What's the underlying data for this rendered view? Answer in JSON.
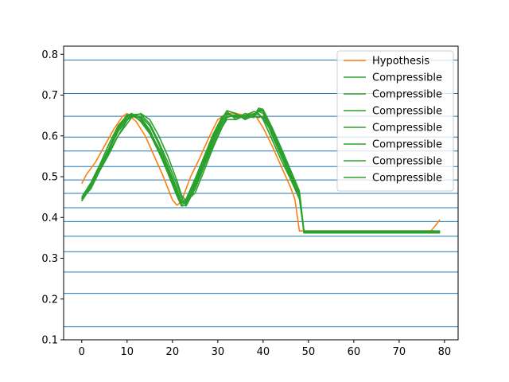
{
  "chart_data": {
    "type": "line",
    "xlim": [
      -4,
      83
    ],
    "ylim": [
      0.1,
      0.82
    ],
    "xticks": [
      0,
      10,
      20,
      30,
      40,
      50,
      60,
      70,
      80
    ],
    "yticks": [
      0.1,
      0.2,
      0.3,
      0.4,
      0.5,
      0.6,
      0.7,
      0.8
    ],
    "xtick_labels": [
      "0",
      "10",
      "20",
      "30",
      "40",
      "50",
      "60",
      "70",
      "80"
    ],
    "ytick_labels": [
      "0.1",
      "0.2",
      "0.3",
      "0.4",
      "0.5",
      "0.6",
      "0.7",
      "0.8"
    ],
    "hlines": [
      0.132,
      0.214,
      0.266,
      0.316,
      0.354,
      0.39,
      0.424,
      0.459,
      0.492,
      0.525,
      0.563,
      0.597,
      0.648,
      0.704,
      0.786
    ],
    "hline_color": "#1f77b4",
    "legend_position": "top-right",
    "series": [
      {
        "name": "Hypothesis",
        "color": "#ff7f0e",
        "x": [
          0,
          1,
          3,
          5,
          7,
          9,
          10,
          12,
          14,
          16,
          18,
          20,
          21,
          22,
          24,
          26,
          28,
          30,
          32,
          34,
          36,
          38,
          40,
          42,
          44,
          46,
          47,
          48,
          49,
          50,
          60,
          70,
          77,
          78,
          79
        ],
        "y": [
          0.483,
          0.505,
          0.535,
          0.575,
          0.615,
          0.648,
          0.655,
          0.635,
          0.6,
          0.55,
          0.5,
          0.443,
          0.43,
          0.44,
          0.5,
          0.545,
          0.595,
          0.64,
          0.655,
          0.655,
          0.65,
          0.655,
          0.62,
          0.575,
          0.525,
          0.475,
          0.445,
          0.367,
          0.367,
          0.367,
          0.367,
          0.367,
          0.367,
          0.38,
          0.395
        ]
      },
      {
        "name": "Compressible",
        "color": "#2ca02c",
        "x": [
          0,
          2,
          4,
          6,
          8,
          10,
          11,
          13,
          15,
          17,
          19,
          21,
          22,
          23,
          25,
          27,
          29,
          31,
          32,
          34,
          36,
          38,
          39,
          40,
          42,
          44,
          46,
          48,
          49,
          60,
          70,
          79
        ],
        "y": [
          0.44,
          0.475,
          0.52,
          0.565,
          0.615,
          0.645,
          0.655,
          0.635,
          0.605,
          0.56,
          0.51,
          0.455,
          0.435,
          0.445,
          0.495,
          0.55,
          0.605,
          0.648,
          0.655,
          0.645,
          0.65,
          0.66,
          0.655,
          0.64,
          0.59,
          0.54,
          0.495,
          0.445,
          0.365,
          0.365,
          0.365,
          0.365
        ]
      },
      {
        "name": "Compressible",
        "color": "#2ca02c",
        "x": [
          0,
          2,
          4,
          6,
          8,
          10,
          11,
          13,
          15,
          17,
          19,
          21,
          22,
          23,
          25,
          27,
          29,
          31,
          32,
          34,
          36,
          38,
          39,
          40,
          42,
          44,
          46,
          48,
          49,
          60,
          70,
          79
        ],
        "y": [
          0.445,
          0.48,
          0.525,
          0.57,
          0.62,
          0.652,
          0.65,
          0.645,
          0.615,
          0.565,
          0.515,
          0.46,
          0.43,
          0.44,
          0.49,
          0.545,
          0.6,
          0.645,
          0.66,
          0.64,
          0.655,
          0.65,
          0.66,
          0.655,
          0.6,
          0.55,
          0.5,
          0.452,
          0.363,
          0.363,
          0.363,
          0.363
        ]
      },
      {
        "name": "Compressible",
        "color": "#2ca02c",
        "x": [
          0,
          2,
          4,
          6,
          8,
          10,
          11,
          13,
          15,
          17,
          19,
          21,
          22,
          23,
          25,
          27,
          29,
          31,
          32,
          34,
          36,
          38,
          39,
          40,
          42,
          44,
          46,
          48,
          49,
          60,
          70,
          79
        ],
        "y": [
          0.445,
          0.47,
          0.515,
          0.555,
          0.6,
          0.638,
          0.648,
          0.648,
          0.625,
          0.58,
          0.525,
          0.47,
          0.44,
          0.435,
          0.48,
          0.535,
          0.59,
          0.638,
          0.652,
          0.65,
          0.643,
          0.648,
          0.645,
          0.648,
          0.615,
          0.56,
          0.505,
          0.458,
          0.362,
          0.362,
          0.362,
          0.362
        ]
      },
      {
        "name": "Compressible",
        "color": "#2ca02c",
        "x": [
          0,
          2,
          4,
          6,
          8,
          10,
          11,
          13,
          15,
          17,
          19,
          21,
          22,
          23,
          25,
          27,
          29,
          31,
          32,
          34,
          36,
          38,
          39,
          40,
          42,
          44,
          46,
          48,
          49,
          60,
          70,
          79
        ],
        "y": [
          0.45,
          0.485,
          0.53,
          0.58,
          0.625,
          0.65,
          0.655,
          0.642,
          0.61,
          0.57,
          0.52,
          0.465,
          0.44,
          0.432,
          0.475,
          0.53,
          0.585,
          0.632,
          0.648,
          0.648,
          0.645,
          0.655,
          0.652,
          0.645,
          0.605,
          0.555,
          0.508,
          0.455,
          0.366,
          0.366,
          0.366,
          0.366
        ]
      },
      {
        "name": "Compressible",
        "color": "#2ca02c",
        "x": [
          0,
          2,
          4,
          6,
          8,
          10,
          11,
          13,
          15,
          17,
          19,
          21,
          22,
          23,
          25,
          27,
          29,
          31,
          32,
          34,
          36,
          38,
          39,
          40,
          42,
          44,
          46,
          48,
          49,
          60,
          70,
          79
        ],
        "y": [
          0.445,
          0.478,
          0.52,
          0.565,
          0.61,
          0.64,
          0.652,
          0.653,
          0.63,
          0.585,
          0.535,
          0.48,
          0.45,
          0.428,
          0.47,
          0.525,
          0.578,
          0.625,
          0.645,
          0.652,
          0.648,
          0.645,
          0.662,
          0.66,
          0.61,
          0.562,
          0.512,
          0.46,
          0.364,
          0.364,
          0.364,
          0.364
        ]
      },
      {
        "name": "Compressible",
        "color": "#2ca02c",
        "x": [
          0,
          2,
          4,
          6,
          8,
          10,
          11,
          13,
          15,
          17,
          19,
          21,
          22,
          23,
          25,
          27,
          29,
          31,
          32,
          34,
          36,
          38,
          39,
          40,
          42,
          44,
          46,
          48,
          49,
          60,
          70,
          79
        ],
        "y": [
          0.448,
          0.48,
          0.52,
          0.56,
          0.6,
          0.63,
          0.645,
          0.655,
          0.64,
          0.6,
          0.55,
          0.49,
          0.455,
          0.44,
          0.46,
          0.515,
          0.572,
          0.622,
          0.64,
          0.64,
          0.65,
          0.652,
          0.665,
          0.662,
          0.615,
          0.565,
          0.515,
          0.462,
          0.367,
          0.367,
          0.367,
          0.367
        ]
      },
      {
        "name": "Compressible",
        "color": "#2ca02c",
        "x": [
          0,
          2,
          4,
          6,
          8,
          10,
          11,
          13,
          15,
          17,
          19,
          21,
          22,
          23,
          25,
          27,
          29,
          31,
          32,
          34,
          36,
          38,
          39,
          40,
          42,
          44,
          46,
          48,
          49,
          60,
          70,
          79
        ],
        "y": [
          0.442,
          0.475,
          0.522,
          0.57,
          0.62,
          0.648,
          0.65,
          0.638,
          0.608,
          0.562,
          0.508,
          0.452,
          0.428,
          0.43,
          0.485,
          0.54,
          0.595,
          0.642,
          0.662,
          0.655,
          0.64,
          0.65,
          0.668,
          0.665,
          0.62,
          0.57,
          0.518,
          0.465,
          0.365,
          0.365,
          0.365,
          0.365
        ]
      }
    ]
  }
}
